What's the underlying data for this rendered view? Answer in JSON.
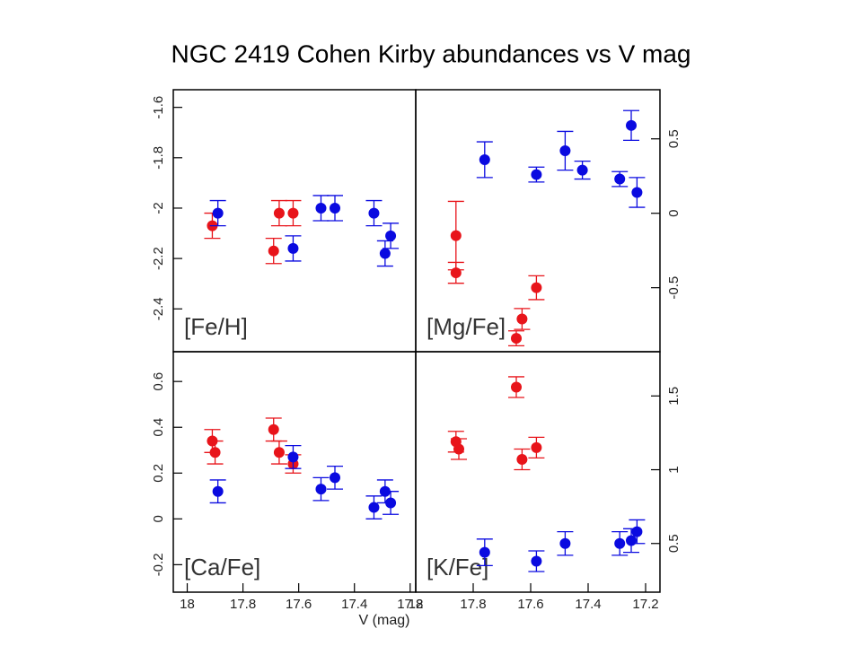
{
  "title": "NGC 2419  Cohen Kirby abundances vs V mag",
  "xlabel": "V (mag)",
  "chart_data": [
    {
      "type": "scatter",
      "label": "[Fe/H]",
      "xlim": [
        18.05,
        17.18
      ],
      "ylim": [
        -2.57,
        -1.53
      ],
      "yticks": [
        -2.4,
        -2.2,
        -2,
        -1.8,
        -1.6
      ],
      "yaxis_side": "left",
      "series": [
        {
          "color": "#e8141a",
          "x": [
            17.91,
            17.69,
            17.67,
            17.62
          ],
          "values": [
            -2.07,
            -2.17,
            -2.02,
            -2.02
          ],
          "errors": [
            0.05,
            0.05,
            0.05,
            0.05
          ]
        },
        {
          "color": "#0a0ae0",
          "x": [
            17.89,
            17.62,
            17.52,
            17.47,
            17.33,
            17.29,
            17.27
          ],
          "values": [
            -2.02,
            -2.16,
            -2.0,
            -2.0,
            -2.02,
            -2.18,
            -2.11
          ],
          "errors": [
            0.05,
            0.05,
            0.05,
            0.05,
            0.05,
            0.05,
            0.05
          ]
        }
      ]
    },
    {
      "type": "scatter",
      "label": "[Mg/Fe]",
      "xlim": [
        18.0,
        17.15
      ],
      "ylim": [
        -0.93,
        0.83
      ],
      "yticks": [
        -0.5,
        0,
        0.5
      ],
      "yaxis_side": "right",
      "series": [
        {
          "color": "#e8141a",
          "x": [
            17.86,
            17.86,
            17.65,
            17.63,
            17.58
          ],
          "values": [
            -0.15,
            -0.4,
            -0.84,
            -0.71,
            -0.5
          ],
          "errors": [
            0.23,
            0.07,
            0.05,
            0.07,
            0.08
          ]
        },
        {
          "color": "#0a0ae0",
          "x": [
            17.76,
            17.58,
            17.48,
            17.42,
            17.29,
            17.25,
            17.23
          ],
          "values": [
            0.36,
            0.26,
            0.42,
            0.29,
            0.23,
            0.59,
            0.14
          ],
          "errors": [
            0.12,
            0.05,
            0.13,
            0.06,
            0.05,
            0.1,
            0.1
          ]
        }
      ]
    },
    {
      "type": "scatter",
      "label": "[Ca/Fe]",
      "xlim": [
        18.05,
        17.18
      ],
      "ylim": [
        -0.32,
        0.73
      ],
      "yticks": [
        -0.2,
        0,
        0.2,
        0.4,
        0.6
      ],
      "yaxis_side": "left",
      "xticks": [
        18,
        17.8,
        17.6,
        17.4,
        17.2
      ],
      "series": [
        {
          "color": "#e8141a",
          "x": [
            17.91,
            17.9,
            17.69,
            17.67,
            17.62
          ],
          "values": [
            0.34,
            0.29,
            0.39,
            0.29,
            0.24
          ],
          "errors": [
            0.05,
            0.05,
            0.05,
            0.05,
            0.04
          ]
        },
        {
          "color": "#0a0ae0",
          "x": [
            17.89,
            17.62,
            17.52,
            17.47,
            17.33,
            17.29,
            17.27
          ],
          "values": [
            0.12,
            0.27,
            0.13,
            0.18,
            0.05,
            0.12,
            0.07
          ],
          "errors": [
            0.05,
            0.05,
            0.05,
            0.05,
            0.05,
            0.05,
            0.05
          ]
        }
      ]
    },
    {
      "type": "scatter",
      "label": "[K/Fe]",
      "xlim": [
        18.0,
        17.15
      ],
      "ylim": [
        0.17,
        1.8
      ],
      "yticks": [
        0.5,
        1,
        1.5
      ],
      "yaxis_side": "right",
      "xticks": [
        18,
        17.8,
        17.6,
        17.4,
        17.2
      ],
      "series": [
        {
          "color": "#e8141a",
          "x": [
            17.86,
            17.85,
            17.65,
            17.63,
            17.58
          ],
          "values": [
            1.19,
            1.14,
            1.56,
            1.07,
            1.15
          ],
          "errors": [
            0.07,
            0.07,
            0.07,
            0.07,
            0.07
          ]
        },
        {
          "color": "#0a0ae0",
          "x": [
            17.76,
            17.58,
            17.48,
            17.29,
            17.25,
            17.23
          ],
          "values": [
            0.44,
            0.38,
            0.5,
            0.5,
            0.52,
            0.58
          ],
          "errors": [
            0.09,
            0.07,
            0.08,
            0.08,
            0.08,
            0.08
          ]
        }
      ]
    }
  ]
}
